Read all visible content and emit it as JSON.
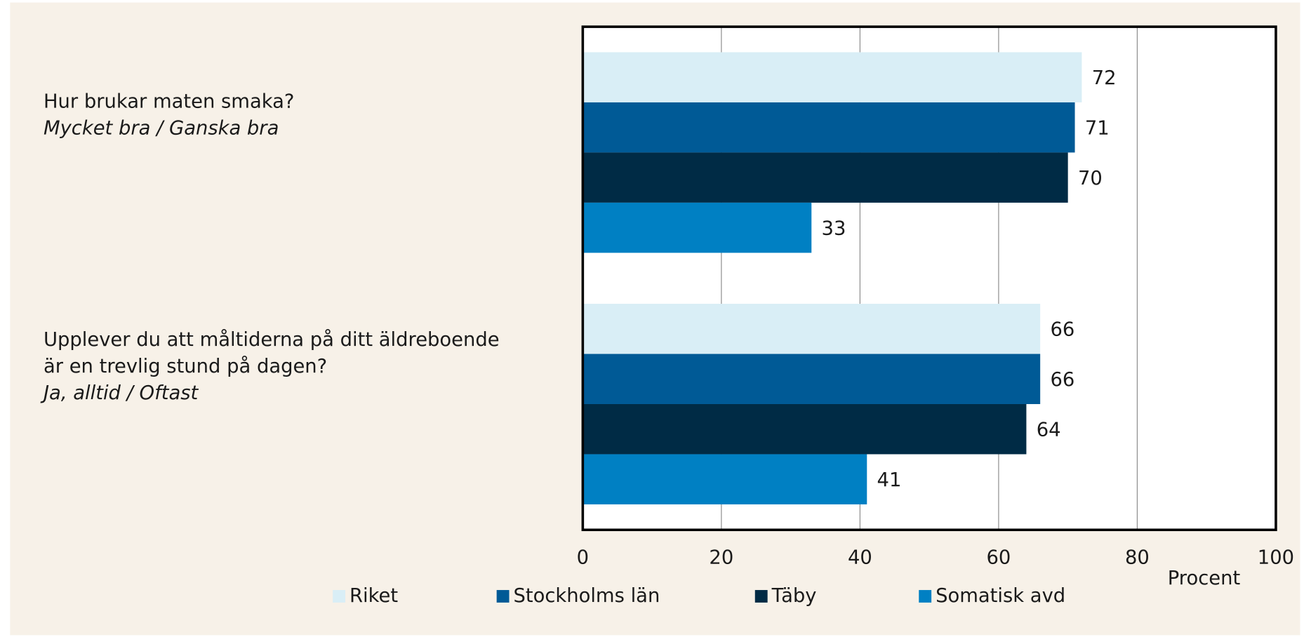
{
  "chart_data": {
    "type": "bar",
    "orientation": "horizontal",
    "categories": [
      {
        "text": [
          "Hur brukar maten smaka?"
        ],
        "subtext": "Mycket bra / Ganska bra"
      },
      {
        "text": [
          "Upplever du att måltiderna på ditt äldreboende",
          "är en trevlig stund på dagen?"
        ],
        "subtext": "Ja, alltid / Oftast"
      }
    ],
    "series": [
      {
        "name": "Riket",
        "color": "#d9eef6",
        "values": [
          72,
          66
        ]
      },
      {
        "name": "Stockholms län",
        "color": "#005a96",
        "values": [
          71,
          66
        ]
      },
      {
        "name": "Täby",
        "color": "#002b45",
        "values": [
          70,
          64
        ]
      },
      {
        "name": "Somatisk avd",
        "color": "#0080c3",
        "values": [
          33,
          41
        ]
      }
    ],
    "xlabel": "Procent",
    "xlim": [
      0,
      100
    ],
    "xticks": [
      0,
      20,
      40,
      60,
      80,
      100
    ],
    "grid": true,
    "legend": "bottom"
  }
}
